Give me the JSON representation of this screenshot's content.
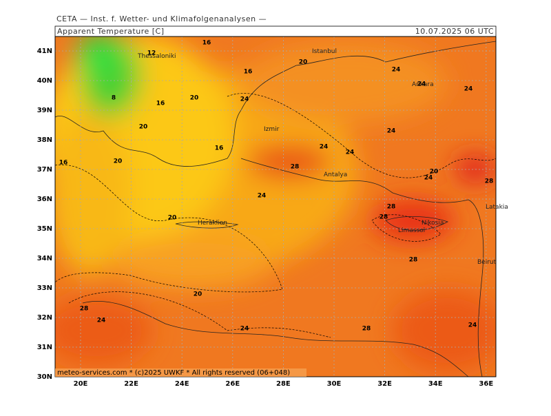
{
  "header": {
    "org": "CETA — Inst. f. Wetter- und Klimafolgenanalysen —",
    "title": "Apparent Temperature [C]",
    "timestamp": "10.07.2025 06 UTC"
  },
  "footer": "meteo-services.com * (c)2025 UWKF * All rights reserved (06+048)",
  "lat_ticks": [
    {
      "value": 41,
      "label": "41N"
    },
    {
      "value": 40,
      "label": "40N"
    },
    {
      "value": 39,
      "label": "39N"
    },
    {
      "value": 38,
      "label": "38N"
    },
    {
      "value": 37,
      "label": "37N"
    },
    {
      "value": 36,
      "label": "36N"
    },
    {
      "value": 35,
      "label": "35N"
    },
    {
      "value": 34,
      "label": "34N"
    },
    {
      "value": 33,
      "label": "33N"
    },
    {
      "value": 32,
      "label": "32N"
    },
    {
      "value": 31,
      "label": "31N"
    },
    {
      "value": 30,
      "label": "30N"
    }
  ],
  "lon_ticks": [
    {
      "value": 20,
      "label": "20E"
    },
    {
      "value": 22,
      "label": "22E"
    },
    {
      "value": 24,
      "label": "24E"
    },
    {
      "value": 26,
      "label": "26E"
    },
    {
      "value": 28,
      "label": "28E"
    },
    {
      "value": 30,
      "label": "30E"
    },
    {
      "value": 32,
      "label": "32E"
    },
    {
      "value": 34,
      "label": "34E"
    },
    {
      "value": 36,
      "label": "36E"
    }
  ],
  "cities": [
    "Thessaloniki",
    "Istanbul",
    "Ankara",
    "Izmir",
    "Antalya",
    "Heraklion",
    "Nikosia",
    "Limassol",
    "Latakia",
    "Beirut"
  ],
  "contour_labels": [
    16,
    12,
    16,
    20,
    24,
    24,
    24,
    8,
    20,
    16,
    24,
    20,
    24,
    16,
    24,
    24,
    16,
    20,
    28,
    20,
    24,
    28,
    24,
    28,
    20,
    28,
    28,
    20,
    28,
    24,
    24,
    28,
    24
  ]
}
